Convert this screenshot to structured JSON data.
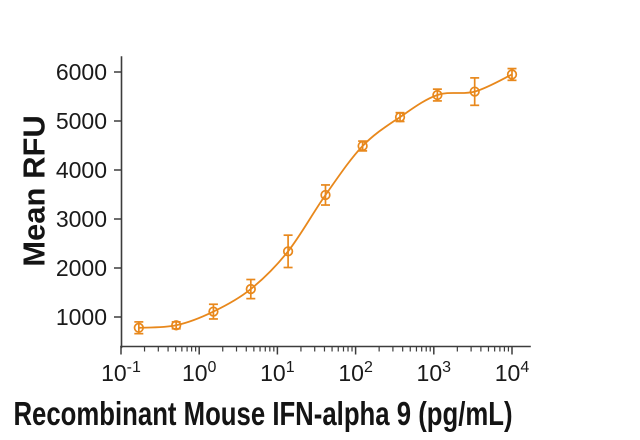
{
  "figure": {
    "background": "#ffffff",
    "accent_color": "#E8881C",
    "axis_color": "#3C3C3C",
    "text_color": "#1A1A1A"
  },
  "chart_data": {
    "type": "scatter",
    "title": "",
    "xlabel": "Recombinant Mouse IFN-alpha 9 (pg/mL)",
    "ylabel": "Mean RFU",
    "x_scale": "log10",
    "x_tick_base": "10",
    "x_tick_exponents": [
      "-1",
      "0",
      "1",
      "2",
      "3",
      "4"
    ],
    "y_ticks": [
      1000,
      2000,
      3000,
      4000,
      5000,
      6000
    ],
    "xlim": [
      0.1,
      17000
    ],
    "ylim": [
      400,
      6300
    ],
    "grid": false,
    "legend_position": "none",
    "curve_type": "sigmoidal dose-response fit",
    "marker": "open-circle with error bars",
    "series": [
      {
        "name": "Recombinant Mouse IFN-alpha 9",
        "color": "#E8881C",
        "points": [
          {
            "x": 0.169,
            "y": 780,
            "err": 120
          },
          {
            "x": 0.508,
            "y": 830,
            "err": 70
          },
          {
            "x": 1.52,
            "y": 1110,
            "err": 150
          },
          {
            "x": 4.57,
            "y": 1570,
            "err": 195
          },
          {
            "x": 13.7,
            "y": 2340,
            "err": 330
          },
          {
            "x": 41.2,
            "y": 3490,
            "err": 205
          },
          {
            "x": 123,
            "y": 4490,
            "err": 100
          },
          {
            "x": 370,
            "y": 5080,
            "err": 90
          },
          {
            "x": 1111,
            "y": 5530,
            "err": 120
          },
          {
            "x": 3333,
            "y": 5600,
            "err": 280
          },
          {
            "x": 10000,
            "y": 5950,
            "err": 120
          }
        ]
      }
    ]
  }
}
